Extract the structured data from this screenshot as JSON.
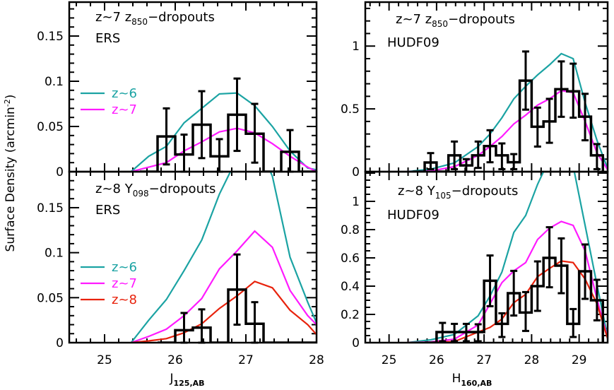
{
  "chart_data": {
    "type": "line",
    "ylabel": {
      "text": "Surface Density (arcmin",
      "sup": "-2",
      "end": ")"
    },
    "xlabels": [
      {
        "main": "J",
        "sub": "125,AB"
      },
      {
        "main": "H",
        "sub": "160,AB"
      }
    ],
    "colors": {
      "z6": "#1ba3a3",
      "z7": "#ff1aff",
      "z8": "#e8220c",
      "hist": "#000000"
    },
    "panels": [
      {
        "id": "top-left",
        "title": {
          "pre": "z~7 z",
          "sub": "850",
          "post": "−dropouts"
        },
        "field": "ERS",
        "xlim": [
          24.5,
          28.0
        ],
        "ylim": [
          0,
          0.1875
        ],
        "yticks": [
          0,
          0.05,
          0.1,
          0.15
        ],
        "ytick_labels": [
          "0",
          "0.05",
          "0.1",
          "0.15"
        ],
        "xticks": [],
        "xtick_labels": [],
        "legend": [
          "z~6",
          "z~7"
        ],
        "hist": {
          "bin_width": 0.25,
          "centers": [
            25.625,
            25.875,
            26.125,
            26.375,
            26.625,
            26.875,
            27.125,
            27.375,
            27.625,
            27.875
          ],
          "values": [
            0,
            0.039,
            0.019,
            0.052,
            0.017,
            0.063,
            0.042,
            0,
            0.022,
            0
          ],
          "err_hi": [
            null,
            0.07,
            0.041,
            0.089,
            0.036,
            0.103,
            0.075,
            null,
            0.046,
            null
          ],
          "err_lo": [
            null,
            0.008,
            0,
            0.015,
            0,
            0.023,
            0.01,
            null,
            0,
            null
          ]
        },
        "series": [
          {
            "name": "z~6",
            "color_key": "z6",
            "x": [
              25.375,
              25.625,
              25.875,
              26.125,
              26.375,
              26.625,
              26.875,
              27.125,
              27.375,
              27.625,
              27.875,
              28.0
            ],
            "y": [
              0,
              0.017,
              0.028,
              0.054,
              0.07,
              0.086,
              0.087,
              0.073,
              0.05,
              0.023,
              0.004,
              0.002
            ]
          },
          {
            "name": "z~7",
            "color_key": "z7",
            "x": [
              25.375,
              25.625,
              25.875,
              26.125,
              26.375,
              26.625,
              26.875,
              27.125,
              27.375,
              27.625,
              27.875,
              28.0
            ],
            "y": [
              0,
              0.005,
              0.01,
              0.023,
              0.033,
              0.044,
              0.048,
              0.043,
              0.031,
              0.017,
              0.005,
              0
            ]
          }
        ]
      },
      {
        "id": "top-right",
        "title": {
          "pre": "z~7 z",
          "sub": "850",
          "post": "−dropouts"
        },
        "field": "HUDF09",
        "xlim": [
          24.5,
          29.6
        ],
        "ylim": [
          0,
          1.35
        ],
        "yticks": [
          0,
          0.5,
          1
        ],
        "ytick_labels": [
          "0",
          "0.5",
          "1"
        ],
        "xticks": [],
        "xtick_labels": [],
        "legend": [],
        "hist": {
          "bin_width": 0.25,
          "centers": [
            25.625,
            25.875,
            26.125,
            26.375,
            26.625,
            26.875,
            27.125,
            27.375,
            27.625,
            27.875,
            28.125,
            28.375,
            28.625,
            28.875,
            29.125,
            29.375
          ],
          "values": [
            0,
            0.073,
            0,
            0.13,
            0.05,
            0.13,
            0.204,
            0.13,
            0.075,
            0.725,
            0.358,
            0.4,
            0.657,
            0.64,
            0.438,
            0.13
          ],
          "err_hi": [
            null,
            0.148,
            null,
            0.24,
            0.1,
            0.24,
            0.33,
            0.225,
            0.14,
            0.957,
            0.51,
            0.58,
            0.878,
            0.86,
            0.62,
            0.22
          ],
          "err_lo": [
            null,
            0.02,
            null,
            0.02,
            0,
            0.03,
            0.075,
            0.02,
            0.02,
            0.494,
            0.2,
            0.23,
            0.437,
            0.43,
            0.25,
            0.02
          ]
        },
        "series": [
          {
            "name": "z~6",
            "color_key": "z6",
            "x": [
              25.375,
              25.875,
              26.375,
              26.875,
              27.125,
              27.375,
              27.625,
              27.875,
              28.125,
              28.375,
              28.625,
              28.875,
              29.125,
              29.375,
              29.625
            ],
            "y": [
              0,
              0.02,
              0.07,
              0.2,
              0.3,
              0.43,
              0.58,
              0.68,
              0.77,
              0.85,
              0.94,
              0.9,
              0.55,
              0.25,
              0
            ]
          },
          {
            "name": "z~7",
            "color_key": "z7",
            "x": [
              25.375,
              25.875,
              26.375,
              26.875,
              27.125,
              27.375,
              27.625,
              27.875,
              28.125,
              28.375,
              28.625,
              28.875,
              29.125,
              29.375,
              29.625
            ],
            "y": [
              0,
              0.005,
              0.04,
              0.13,
              0.2,
              0.28,
              0.38,
              0.45,
              0.53,
              0.58,
              0.645,
              0.63,
              0.4,
              0.15,
              0
            ]
          }
        ]
      },
      {
        "id": "bottom-left",
        "title": {
          "pre": "z~8 Y",
          "sub": "098",
          "post": "−dropouts"
        },
        "field": "ERS",
        "xlim": [
          24.5,
          28.0
        ],
        "ylim": [
          0,
          0.19
        ],
        "yticks": [
          0,
          0.05,
          0.1,
          0.15
        ],
        "ytick_labels": [
          "0",
          "0.05",
          "0.1",
          "0.15"
        ],
        "xticks": [
          25,
          26,
          27,
          28
        ],
        "xtick_labels": [
          "25",
          "26",
          "27",
          "28"
        ],
        "legend": [
          "z~6",
          "z~7",
          "z~8"
        ],
        "hist": {
          "bin_width": 0.25,
          "centers": [
            25.875,
            26.125,
            26.375,
            26.625,
            26.875,
            27.125,
            27.375,
            27.625,
            27.875
          ],
          "values": [
            0,
            0.0138,
            0.0167,
            0,
            0.059,
            0.021,
            0,
            0,
            0
          ],
          "err_hi": [
            null,
            0.033,
            0.037,
            null,
            0.098,
            0.045,
            null,
            null,
            null
          ],
          "err_lo": [
            null,
            0,
            0,
            null,
            0.02,
            0,
            null,
            null,
            null
          ]
        },
        "series": [
          {
            "name": "z~6",
            "color_key": "z6",
            "x": [
              25.375,
              25.625,
              25.875,
              26.125,
              26.375,
              26.625,
              26.875,
              27.125,
              27.375,
              27.625,
              27.875,
              28.0
            ],
            "y": [
              0,
              0.025,
              0.048,
              0.08,
              0.114,
              0.165,
              0.205,
              0.23,
              0.185,
              0.095,
              0.045,
              0.022
            ]
          },
          {
            "name": "z~7",
            "color_key": "z7",
            "x": [
              25.375,
              25.625,
              25.875,
              26.125,
              26.375,
              26.625,
              26.875,
              27.125,
              27.375,
              27.625,
              27.875,
              28.0
            ],
            "y": [
              0,
              0.007,
              0.015,
              0.03,
              0.049,
              0.082,
              0.102,
              0.124,
              0.106,
              0.058,
              0.03,
              0.02
            ]
          },
          {
            "name": "z~8",
            "color_key": "z8",
            "x": [
              25.375,
              25.625,
              25.875,
              26.125,
              26.375,
              26.625,
              26.875,
              27.125,
              27.375,
              27.625,
              27.875,
              28.0
            ],
            "y": [
              0,
              0.002,
              0.0045,
              0.011,
              0.021,
              0.038,
              0.052,
              0.068,
              0.061,
              0.036,
              0.02,
              0.009
            ]
          }
        ]
      },
      {
        "id": "bottom-right",
        "title": {
          "pre": "z~8 Y",
          "sub": "105",
          "post": "−dropouts"
        },
        "field": "HUDF09",
        "xlim": [
          24.5,
          29.6
        ],
        "ylim": [
          0,
          1.21
        ],
        "yticks": [
          0,
          0.2,
          0.4,
          0.6,
          0.8,
          1
        ],
        "ytick_labels": [
          "0",
          "0.2",
          "0.4",
          "0.6",
          "0.8",
          "1"
        ],
        "xticks": [
          25,
          26,
          27,
          28,
          29
        ],
        "xtick_labels": [
          "25",
          "26",
          "27",
          "28",
          "29"
        ],
        "legend": [],
        "hist": {
          "bin_width": 0.25,
          "centers": [
            25.875,
            26.125,
            26.375,
            26.625,
            26.875,
            27.125,
            27.375,
            27.625,
            27.875,
            28.125,
            28.375,
            28.625,
            28.875,
            29.125,
            29.375
          ],
          "values": [
            0,
            0.075,
            0.075,
            0.075,
            0.075,
            0.438,
            0.133,
            0.35,
            0.213,
            0.4,
            0.6,
            0.545,
            0.133,
            0.505,
            0.3
          ],
          "err_hi": [
            null,
            0.14,
            0.133,
            0.133,
            0.13,
            0.617,
            0.208,
            0.508,
            0.358,
            0.575,
            0.817,
            0.738,
            0.238,
            0.695,
            0.445
          ],
          "err_lo": [
            null,
            0.01,
            0.01,
            0.01,
            0.01,
            0.258,
            0.04,
            0.192,
            0.083,
            0.225,
            0.392,
            0.35,
            0.04,
            0.31,
            0.158
          ]
        },
        "series": [
          {
            "name": "z~6",
            "color_key": "z6",
            "x": [
              25.375,
              25.875,
              26.375,
              26.875,
              27.125,
              27.375,
              27.625,
              27.875,
              28.125,
              28.375,
              28.625,
              28.875,
              29.125,
              29.375,
              29.625
            ],
            "y": [
              0,
              0.02,
              0.058,
              0.19,
              0.33,
              0.5,
              0.78,
              0.9,
              1.12,
              1.3,
              1.38,
              1.25,
              0.83,
              0.41,
              0
            ]
          },
          {
            "name": "z~7",
            "color_key": "z7",
            "x": [
              25.375,
              25.875,
              26.375,
              26.875,
              27.125,
              27.375,
              27.625,
              27.875,
              28.125,
              28.375,
              28.625,
              28.875,
              29.125,
              29.375,
              29.625
            ],
            "y": [
              0,
              0.005,
              0.025,
              0.125,
              0.275,
              0.425,
              0.508,
              0.567,
              0.73,
              0.81,
              0.858,
              0.83,
              0.65,
              0.31,
              0
            ]
          },
          {
            "name": "z~8",
            "color_key": "z8",
            "x": [
              25.375,
              25.875,
              26.375,
              26.875,
              27.125,
              27.375,
              27.625,
              27.875,
              28.125,
              28.375,
              28.625,
              28.875,
              29.125,
              29.375,
              29.625
            ],
            "y": [
              0,
              0.002,
              0.008,
              0.075,
              0.108,
              0.167,
              0.283,
              0.342,
              0.467,
              0.525,
              0.578,
              0.567,
              0.45,
              0.275,
              0
            ]
          }
        ]
      }
    ]
  }
}
